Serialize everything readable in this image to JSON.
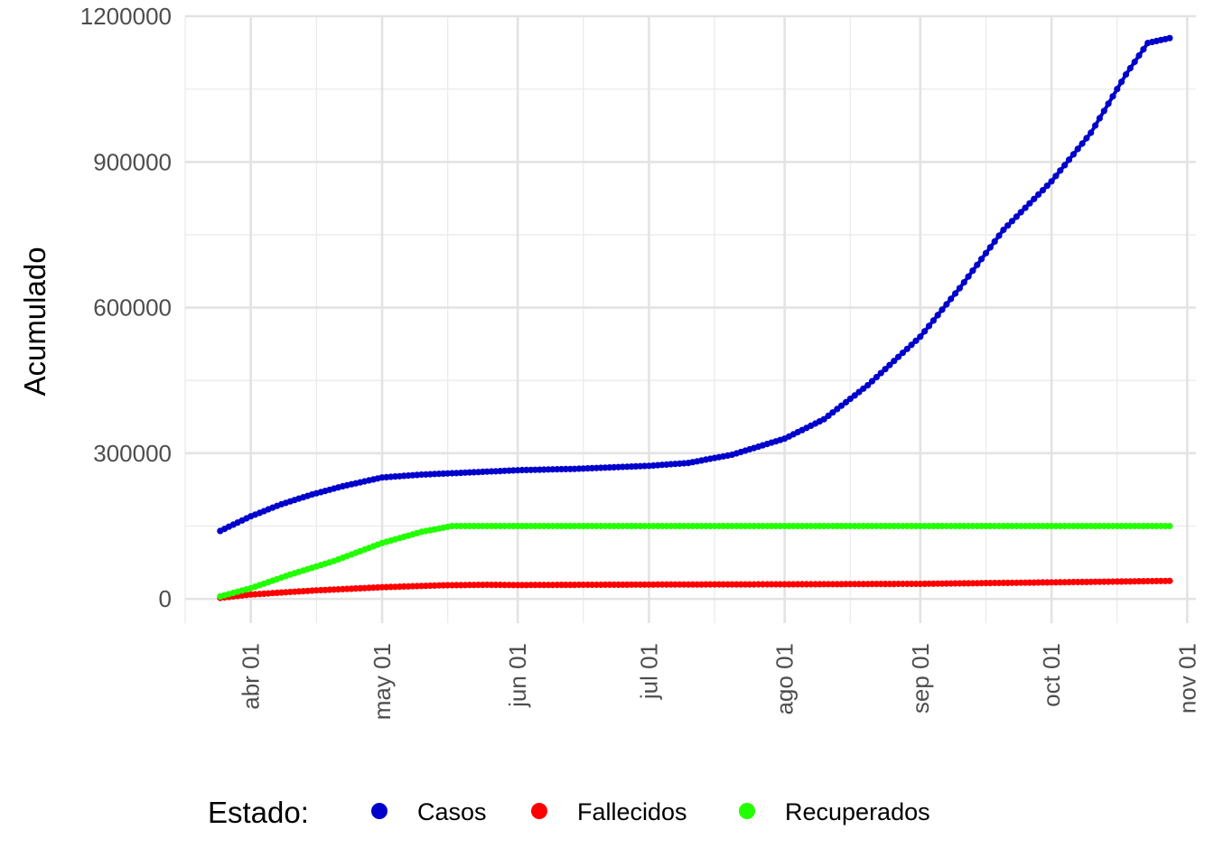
{
  "chart_data": {
    "type": "line",
    "title": "",
    "xlabel": "",
    "ylabel": "Acumulado",
    "x_ticks": [
      {
        "date": "2020-04-01",
        "label": "abr 01"
      },
      {
        "date": "2020-05-01",
        "label": "may 01"
      },
      {
        "date": "2020-06-01",
        "label": "jun 01"
      },
      {
        "date": "2020-07-01",
        "label": "jul 01"
      },
      {
        "date": "2020-08-01",
        "label": "ago 01"
      },
      {
        "date": "2020-09-01",
        "label": "sep 01"
      },
      {
        "date": "2020-10-01",
        "label": "oct 01"
      },
      {
        "date": "2020-11-01",
        "label": "nov 01"
      }
    ],
    "y_ticks": [
      {
        "value": 0,
        "label": "0"
      },
      {
        "value": 300000,
        "label": "300000"
      },
      {
        "value": 600000,
        "label": "600000"
      },
      {
        "value": 900000,
        "label": "900000"
      },
      {
        "value": 1200000,
        "label": "1200000"
      }
    ],
    "xlim": [
      "2020-03-17",
      "2020-11-03"
    ],
    "ylim": [
      -50000,
      1200000
    ],
    "grid": true,
    "legend_title": "Estado:",
    "legend_position": "bottom",
    "x_range": [
      "2020-03-25",
      "2020-10-28"
    ],
    "series": [
      {
        "name": "Casos",
        "color": "#0000CC",
        "points": [
          [
            "2020-03-25",
            140000
          ],
          [
            "2020-04-01",
            170000
          ],
          [
            "2020-04-08",
            195000
          ],
          [
            "2020-04-15",
            215000
          ],
          [
            "2020-04-22",
            232000
          ],
          [
            "2020-05-01",
            250000
          ],
          [
            "2020-05-10",
            256000
          ],
          [
            "2020-05-20",
            260000
          ],
          [
            "2020-06-01",
            265000
          ],
          [
            "2020-06-15",
            268000
          ],
          [
            "2020-07-01",
            274000
          ],
          [
            "2020-07-10",
            280000
          ],
          [
            "2020-07-20",
            297000
          ],
          [
            "2020-08-01",
            330000
          ],
          [
            "2020-08-10",
            370000
          ],
          [
            "2020-08-20",
            440000
          ],
          [
            "2020-09-01",
            540000
          ],
          [
            "2020-09-10",
            640000
          ],
          [
            "2020-09-20",
            760000
          ],
          [
            "2020-10-01",
            860000
          ],
          [
            "2020-10-10",
            960000
          ],
          [
            "2020-10-18",
            1080000
          ],
          [
            "2020-10-23",
            1145000
          ],
          [
            "2020-10-28",
            1155000
          ]
        ]
      },
      {
        "name": "Fallecidos",
        "color": "#FF0000",
        "points": [
          [
            "2020-03-25",
            2000
          ],
          [
            "2020-04-01",
            9000
          ],
          [
            "2020-04-15",
            17000
          ],
          [
            "2020-05-01",
            24000
          ],
          [
            "2020-05-15",
            28000
          ],
          [
            "2020-05-25",
            29000
          ],
          [
            "2020-06-01",
            28500
          ],
          [
            "2020-07-01",
            29500
          ],
          [
            "2020-08-01",
            30000
          ],
          [
            "2020-09-01",
            31000
          ],
          [
            "2020-10-01",
            34000
          ],
          [
            "2020-10-28",
            37000
          ]
        ]
      },
      {
        "name": "Recuperados",
        "color": "#22FF00",
        "points": [
          [
            "2020-03-25",
            5000
          ],
          [
            "2020-04-01",
            22000
          ],
          [
            "2020-04-10",
            50000
          ],
          [
            "2020-04-20",
            78000
          ],
          [
            "2020-05-01",
            115000
          ],
          [
            "2020-05-10",
            138000
          ],
          [
            "2020-05-17",
            150000
          ],
          [
            "2020-06-01",
            150000
          ],
          [
            "2020-07-01",
            150000
          ],
          [
            "2020-08-01",
            150000
          ],
          [
            "2020-09-01",
            150000
          ],
          [
            "2020-10-01",
            150000
          ],
          [
            "2020-10-28",
            150000
          ]
        ]
      }
    ]
  }
}
